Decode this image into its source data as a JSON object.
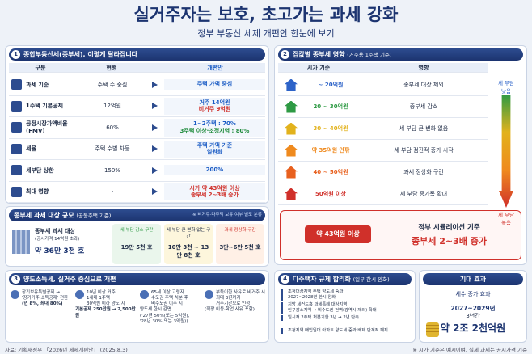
{
  "header": {
    "title": "실거주자는 보호, 초고가는 과세 강화",
    "subtitle": "정부 부동산 세제 개편안 한눈에 보기"
  },
  "section1": {
    "number": "1",
    "title": "종합부동산세(종부세), 이렇게 달라집니다",
    "columns": [
      "구분",
      "현행",
      "개편안"
    ],
    "rows": [
      {
        "label": "과세 기준",
        "current": "주택 수 중심",
        "proposed": [
          "주택 가액 중심"
        ]
      },
      {
        "label": "1주택 기본공제",
        "current": "12억원",
        "proposed": [
          "거주 14억원",
          "비거주 9억원"
        ]
      },
      {
        "label": "공정시장가액비율 (FMV)",
        "current": "60%",
        "proposed": [
          "1~2주택 : 70%",
          "3주택 이상·조정지역 : 80%"
        ]
      },
      {
        "label": "세율",
        "current": "주택 수별 차등",
        "proposed": [
          "주택 가액 기준",
          "일원화"
        ]
      },
      {
        "label": "세부담 상한",
        "current": "150%",
        "proposed": [
          "200%"
        ]
      },
      {
        "label": "최대 영향",
        "current": "-",
        "proposed": [
          "시가 약 43억원 이상",
          "종부세 2~3배 증가"
        ]
      }
    ]
  },
  "section2": {
    "number": "2",
    "title": "집값별 종부세 영향",
    "note": "(거주용 1주택 기준)",
    "columns": [
      "시가 기준",
      "영향"
    ],
    "rows": [
      {
        "price": "~ 20억원",
        "effect": "종부세 대상 제외"
      },
      {
        "price": "20 ~ 30억원",
        "effect": "종부세 감소"
      },
      {
        "price": "30 ~ 40억원",
        "effect": "세 부담 큰 변화 없음"
      },
      {
        "price": "약 35억원 안팎",
        "effect": "세 부담 점진적 증가 시작"
      },
      {
        "price": "40 ~ 50억원",
        "effect": "과세 정상화 구간"
      },
      {
        "price": "50억원 이상",
        "effect": "세 부담 증가폭 확대"
      }
    ],
    "highlight": {
      "price": "약 43억원 이상",
      "line1": "정부 시뮬레이션 기준",
      "line2": "종부세 2~3배 증가"
    },
    "gauge_top": [
      "세 부담",
      "낮음"
    ],
    "gauge_bottom": [
      "세 부담",
      "높음"
    ]
  },
  "scale": {
    "title": "종부세 과세 대상 규모",
    "note": "(공동주택 기준)",
    "remark": "※ 비거주·다주택 보유 여부 별도 분류",
    "total_label": "종부세 과세 대상",
    "total_sub": "(공시가격 14억원 초과)",
    "total": "약 36만 3천 호",
    "cards": [
      {
        "label": "세 부담 감소 구간",
        "value": "19만 5천 호"
      },
      {
        "label": "세 부담 큰 변화 없는 구간",
        "value": "10만 3천 ~ 13만 8천 호"
      },
      {
        "label": "과세 정상화 구간",
        "value": "3만~6만 5천 호"
      }
    ]
  },
  "section3": {
    "number": "3",
    "title": "양도소득세, 실거주 중심으로 개편",
    "items": [
      [
        "장기보유특별공제 →",
        "'장기거주 소득공제' 전환",
        "(연 8%, 최대 80%)"
      ],
      [
        "10년 이상 거주",
        "1세대 1주택",
        "30억원 이하 양도 시",
        "기본공제 250만원 → 2,500만원"
      ],
      [
        "65세 이상 고령자",
        "수도권 주택 처분 후",
        "비수도권 이주 시",
        "양도세 한시 감면",
        "('27년 50%(또는 5억원),",
        "'28년 30%(또는 3억원))"
      ],
      [
        "부득이한 사유로 비거주 시",
        "최대 3년까지",
        "거주기간으로 인정",
        "(직장 이동·학업 사유 포함)"
      ]
    ]
  },
  "section4": {
    "number": "4",
    "title": "다주택자 규제 합리화",
    "note": "(일부 한시 완화)",
    "bullets": [
      [
        "조정대상지역 주택 양도세 중과",
        "2027~2028년 한시 완화"
      ],
      [
        "지방 세컨드홈 과세특례 대상지역",
        "인구감소지역 → 비수도권 전역(광역시 제외) 확대"
      ],
      [
        "일시적 2주택 처분기한 3년 → 2년 단축"
      ],
      [
        "조정지역 매입임대 아파트 양도세 중과 배제 단계적 폐지"
      ]
    ]
  },
  "effect": {
    "title": "기대 효과",
    "label": "세수 증가 효과",
    "period": "2027~2029년",
    "period2": "3년간",
    "amount": "약 2조 2천억원"
  },
  "footer": {
    "source": "자료: 기획재정부 「2026년 세제개편안」 (2025.8.3)",
    "note": "※ 시가 기준은 예시이며, 실제 과세는 공시가격 기준"
  }
}
